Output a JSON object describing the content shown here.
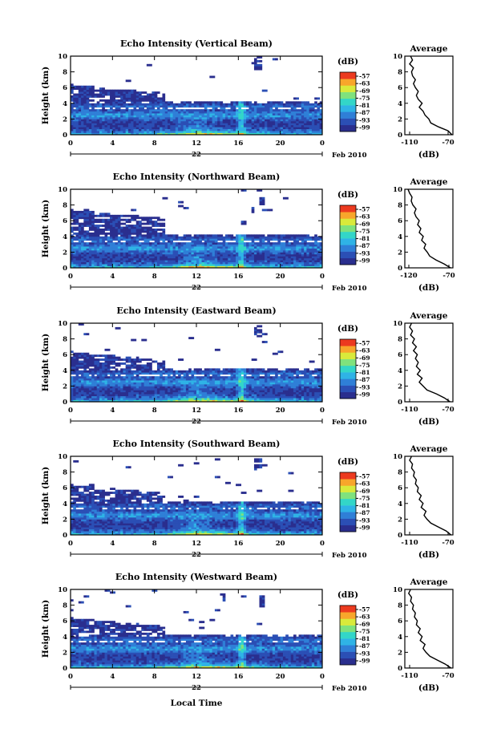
{
  "figure": {
    "x_axis_label": "Local Time",
    "date_label": "Feb 2010",
    "date_day": "22"
  },
  "colorbar": {
    "unit": "(dB)",
    "ticks": [
      "-57",
      "-63",
      "-69",
      "-75",
      "-81",
      "-87",
      "-93",
      "-99"
    ],
    "colors": [
      "#2a2e8e",
      "#2b4fb5",
      "#2f7fd7",
      "#2fb3e6",
      "#33d6c8",
      "#7fe27d",
      "#d9ea3b",
      "#f8a62b",
      "#ec3a1f"
    ]
  },
  "chart_data": [
    {
      "type": "heatmap",
      "title": "Echo Intensity (Vertical Beam)",
      "xlabel": "",
      "ylabel": "Height (km)",
      "xlim": [
        0,
        24
      ],
      "ylim": [
        0,
        10
      ],
      "xticks": [
        "0",
        "4",
        "8",
        "12",
        "16",
        "20",
        "0"
      ],
      "yticks": [
        "0",
        "2",
        "4",
        "6",
        "8",
        "10"
      ],
      "colorbar_range_db": [
        -99,
        -57
      ],
      "profile": {
        "title": "Average",
        "xlabel": "(dB)",
        "xlim": [
          -115,
          -65
        ],
        "xticks": [
          "-110",
          "-70"
        ],
        "yticks": [
          "0",
          "2",
          "4",
          "6",
          "8",
          "10"
        ],
        "height_km": [
          0,
          0.5,
          1,
          1.5,
          2,
          2.5,
          3,
          3.5,
          4,
          4.5,
          5,
          5.5,
          6,
          6.5,
          7,
          7.5,
          8,
          8.5,
          9,
          9.5,
          10
        ],
        "db": [
          -66,
          -70,
          -80,
          -88,
          -90,
          -94,
          -96,
          -100,
          -97,
          -101,
          -103,
          -101,
          -104,
          -106,
          -104,
          -107,
          -108,
          -106,
          -110,
          -107,
          -109
        ]
      }
    },
    {
      "type": "heatmap",
      "title": "Echo Intensity (Northward Beam)",
      "xlabel": "",
      "ylabel": "Height (km)",
      "xlim": [
        0,
        24
      ],
      "ylim": [
        0,
        10
      ],
      "xticks": [
        "0",
        "4",
        "8",
        "12",
        "16",
        "20",
        "0"
      ],
      "yticks": [
        "0",
        "2",
        "4",
        "6",
        "8",
        "10"
      ],
      "colorbar_range_db": [
        -99,
        -57
      ],
      "profile": {
        "title": "Average",
        "xlabel": "(dB)",
        "xlim": [
          -125,
          -65
        ],
        "xticks": [
          "-120",
          "-70"
        ],
        "yticks": [
          "0",
          "2",
          "4",
          "6",
          "8",
          "10"
        ],
        "height_km": [
          0,
          0.5,
          1,
          1.5,
          2,
          2.5,
          3,
          3.5,
          4,
          4.5,
          5,
          5.5,
          6,
          6.5,
          7,
          7.5,
          8,
          8.5,
          9,
          9.5,
          10
        ],
        "db": [
          -68,
          -76,
          -86,
          -94,
          -97,
          -101,
          -99,
          -104,
          -102,
          -107,
          -105,
          -109,
          -107,
          -111,
          -113,
          -111,
          -115,
          -117,
          -116,
          -119,
          -121
        ]
      }
    },
    {
      "type": "heatmap",
      "title": "Echo Intensity (Eastward Beam)",
      "xlabel": "",
      "ylabel": "Height (km)",
      "xlim": [
        0,
        24
      ],
      "ylim": [
        0,
        10
      ],
      "xticks": [
        "0",
        "4",
        "8",
        "12",
        "16",
        "20",
        "0"
      ],
      "yticks": [
        "0",
        "2",
        "4",
        "6",
        "8",
        "10"
      ],
      "colorbar_range_db": [
        -99,
        -57
      ],
      "profile": {
        "title": "Average",
        "xlabel": "(dB)",
        "xlim": [
          -115,
          -65
        ],
        "xticks": [
          "-110",
          "-70"
        ],
        "yticks": [
          "0",
          "2",
          "4",
          "6",
          "8",
          "10"
        ],
        "height_km": [
          0,
          0.5,
          1,
          1.5,
          2,
          2.5,
          3,
          3.5,
          4,
          4.5,
          5,
          5.5,
          6,
          6.5,
          7,
          7.5,
          8,
          8.5,
          9,
          9.5,
          10
        ],
        "db": [
          -68,
          -74,
          -82,
          -92,
          -96,
          -100,
          -97,
          -102,
          -99,
          -103,
          -101,
          -104,
          -102,
          -106,
          -103,
          -107,
          -105,
          -109,
          -107,
          -110,
          -108
        ]
      }
    },
    {
      "type": "heatmap",
      "title": "Echo Intensity (Southward Beam)",
      "xlabel": "",
      "ylabel": "Height (km)",
      "xlim": [
        0,
        24
      ],
      "ylim": [
        0,
        10
      ],
      "xticks": [
        "0",
        "4",
        "8",
        "12",
        "16",
        "20",
        "0"
      ],
      "yticks": [
        "0",
        "2",
        "4",
        "6",
        "8",
        "10"
      ],
      "colorbar_range_db": [
        -99,
        -57
      ],
      "profile": {
        "title": "Average",
        "xlabel": "(dB)",
        "xlim": [
          -115,
          -65
        ],
        "xticks": [
          "-110",
          "-70"
        ],
        "yticks": [
          "0",
          "2",
          "4",
          "6",
          "8",
          "10"
        ],
        "height_km": [
          0,
          0.5,
          1,
          1.5,
          2,
          2.5,
          3,
          3.5,
          4,
          4.5,
          5,
          5.5,
          6,
          6.5,
          7,
          7.5,
          8,
          8.5,
          9,
          9.5,
          10
        ],
        "db": [
          -67,
          -72,
          -80,
          -88,
          -92,
          -95,
          -93,
          -98,
          -96,
          -100,
          -98,
          -102,
          -101,
          -104,
          -103,
          -106,
          -105,
          -108,
          -107,
          -110,
          -108
        ]
      }
    },
    {
      "type": "heatmap",
      "title": "Echo Intensity (Westward Beam)",
      "xlabel": "Local Time",
      "ylabel": "Height (km)",
      "xlim": [
        0,
        24
      ],
      "ylim": [
        0,
        10
      ],
      "xticks": [
        "0",
        "4",
        "8",
        "12",
        "16",
        "20",
        "0"
      ],
      "yticks": [
        "0",
        "2",
        "4",
        "6",
        "8",
        "10"
      ],
      "colorbar_range_db": [
        -99,
        -57
      ],
      "profile": {
        "title": "Average",
        "xlabel": "(dB)",
        "xlim": [
          -115,
          -65
        ],
        "xticks": [
          "-110",
          "-70"
        ],
        "yticks": [
          "0",
          "2",
          "4",
          "6",
          "8",
          "10"
        ],
        "height_km": [
          0,
          0.5,
          1,
          1.5,
          2,
          2.5,
          3,
          3.5,
          4,
          4.5,
          5,
          5.5,
          6,
          6.5,
          7,
          7.5,
          8,
          8.5,
          9,
          9.5,
          10
        ],
        "db": [
          -67,
          -73,
          -81,
          -89,
          -93,
          -96,
          -94,
          -99,
          -97,
          -101,
          -99,
          -103,
          -102,
          -105,
          -104,
          -107,
          -106,
          -109,
          -108,
          -111,
          -109
        ]
      }
    }
  ]
}
